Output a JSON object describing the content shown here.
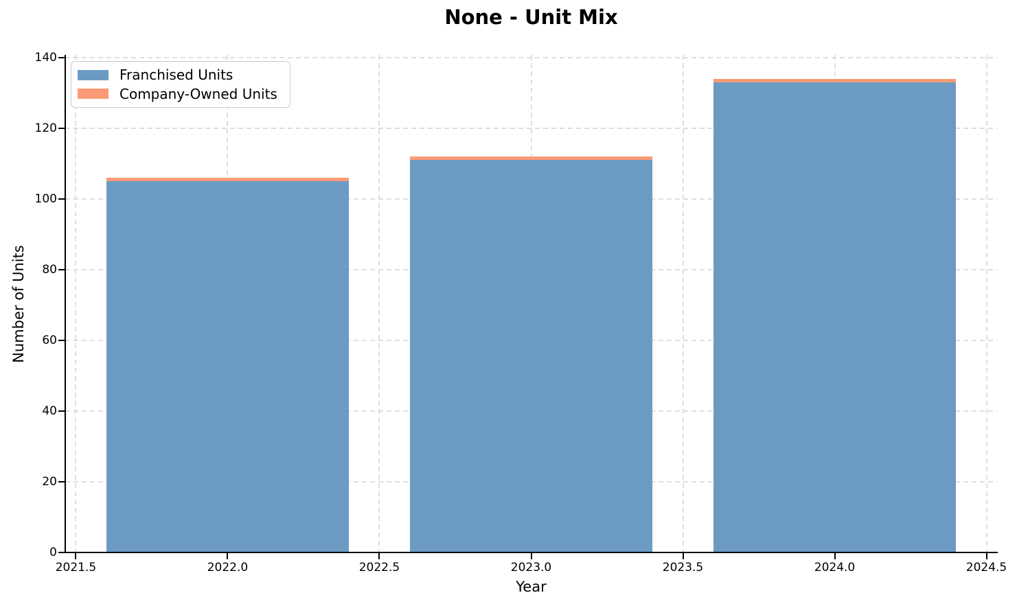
{
  "chart_data": {
    "type": "bar",
    "stacked": true,
    "title": "None - Unit Mix",
    "xlabel": "Year",
    "ylabel": "Number of Units",
    "categories": [
      2022,
      2023,
      2024
    ],
    "series": [
      {
        "name": "Franchised Units",
        "color": "#6B9BC3",
        "values": [
          105,
          111,
          133
        ]
      },
      {
        "name": "Company-Owned Units",
        "color": "#FC9A75",
        "values": [
          1,
          1,
          1
        ]
      }
    ],
    "totals": [
      106,
      112,
      134
    ],
    "bar_width": 0.8,
    "xlim": [
      2021.465,
      2024.535
    ],
    "ylim": [
      0,
      140.7
    ],
    "xticks": [
      2021.5,
      2022.0,
      2022.5,
      2023.0,
      2023.5,
      2024.0,
      2024.5
    ],
    "xtick_labels": [
      "2021.5",
      "2022.0",
      "2022.5",
      "2023.0",
      "2023.5",
      "2024.0",
      "2024.5"
    ],
    "yticks": [
      0,
      20,
      40,
      60,
      80,
      100,
      120,
      140
    ],
    "ytick_labels": [
      "0",
      "20",
      "40",
      "60",
      "80",
      "100",
      "120",
      "140"
    ],
    "grid": true,
    "grid_style": "dashed",
    "legend_position": "upper left",
    "colors": {
      "grid": "#DEDEDE",
      "spine": "#000000",
      "text": "#000000",
      "background": "#FFFFFF",
      "legend_border": "#CCCCCC"
    }
  }
}
